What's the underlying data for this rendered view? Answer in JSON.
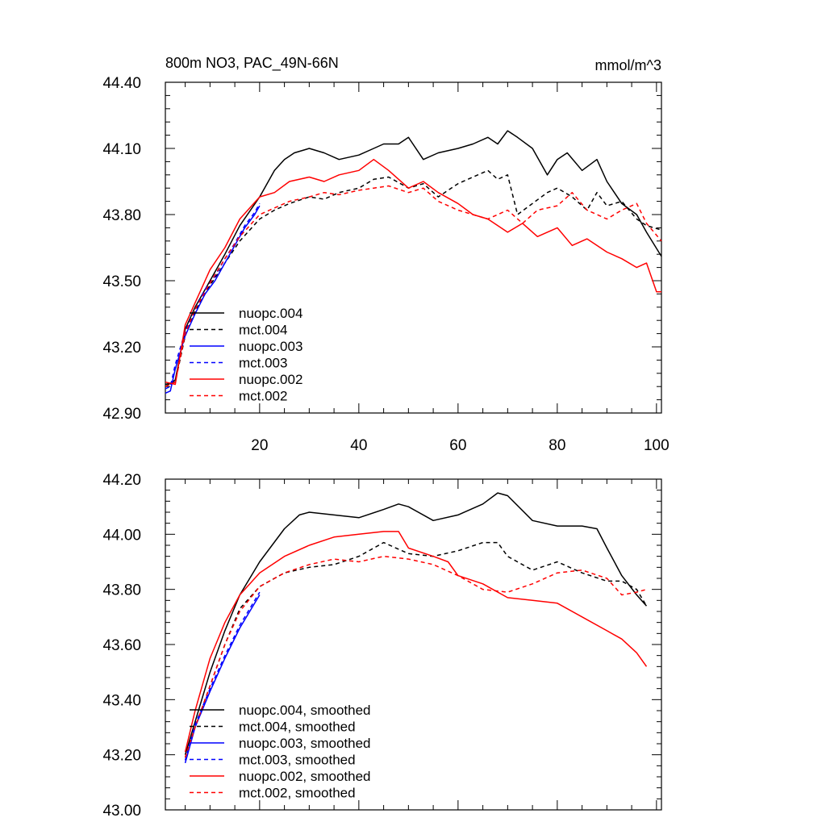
{
  "chart_data": [
    {
      "type": "line",
      "title": "800m NO3, PAC_49N-66N",
      "units": "mmol/m^3",
      "xlim": [
        1,
        101
      ],
      "ylim": [
        42.9,
        44.4
      ],
      "xticks": [
        20,
        40,
        60,
        80,
        100
      ],
      "xtick_labels": [
        "20",
        "40",
        "60",
        "80",
        "100"
      ],
      "yticks": [
        42.9,
        43.2,
        43.5,
        43.8,
        44.1,
        44.4
      ],
      "ytick_labels": [
        "42.90",
        "43.20",
        "43.50",
        "43.80",
        "44.10",
        "44.40"
      ],
      "legend_position": "lower-left",
      "series": [
        {
          "name": "nuopc.004",
          "color": "#000000",
          "dash": "solid",
          "x": [
            1,
            3,
            5,
            7,
            10,
            13,
            16,
            20,
            23,
            25,
            27,
            30,
            33,
            36,
            40,
            43,
            45,
            48,
            50,
            53,
            56,
            60,
            63,
            66,
            68,
            70,
            72,
            75,
            78,
            80,
            82,
            85,
            88,
            90,
            93,
            96,
            98,
            101
          ],
          "y": [
            43.02,
            43.05,
            43.28,
            43.38,
            43.5,
            43.62,
            43.75,
            43.88,
            44.0,
            44.05,
            44.08,
            44.1,
            44.08,
            44.05,
            44.07,
            44.1,
            44.12,
            44.12,
            44.15,
            44.05,
            44.08,
            44.1,
            44.12,
            44.15,
            44.12,
            44.18,
            44.15,
            44.1,
            43.98,
            44.05,
            44.08,
            44.0,
            44.05,
            43.95,
            43.85,
            43.8,
            43.72,
            43.61
          ]
        },
        {
          "name": "mct.004",
          "color": "#000000",
          "dash": "dashed",
          "x": [
            1,
            3,
            5,
            7,
            10,
            13,
            16,
            20,
            23,
            26,
            30,
            33,
            36,
            40,
            43,
            46,
            50,
            53,
            56,
            60,
            63,
            66,
            68,
            70,
            72,
            75,
            78,
            80,
            83,
            86,
            88,
            90,
            93,
            96,
            98,
            101
          ],
          "y": [
            43.03,
            43.04,
            43.25,
            43.36,
            43.48,
            43.58,
            43.68,
            43.78,
            43.82,
            43.85,
            43.88,
            43.87,
            43.9,
            43.92,
            43.96,
            43.97,
            43.92,
            43.94,
            43.88,
            43.94,
            43.97,
            44.0,
            43.96,
            43.98,
            43.8,
            43.85,
            43.9,
            43.92,
            43.88,
            43.82,
            43.9,
            43.84,
            43.86,
            43.78,
            43.75,
            43.73
          ]
        },
        {
          "name": "nuopc.003",
          "color": "#0000ff",
          "dash": "solid",
          "x": [
            1,
            2,
            3,
            5,
            7,
            9,
            11,
            13,
            15,
            17,
            19,
            20
          ],
          "y": [
            42.99,
            43.0,
            43.1,
            43.25,
            43.35,
            43.44,
            43.5,
            43.58,
            43.66,
            43.74,
            43.8,
            43.84
          ]
        },
        {
          "name": "mct.003",
          "color": "#0000ff",
          "dash": "dashed",
          "x": [
            1,
            2,
            3,
            5,
            7,
            9,
            11,
            13,
            15,
            17,
            19,
            20
          ],
          "y": [
            43.01,
            43.02,
            43.12,
            43.27,
            43.37,
            43.46,
            43.52,
            43.6,
            43.67,
            43.75,
            43.81,
            43.85
          ]
        },
        {
          "name": "nuopc.002",
          "color": "#ff0000",
          "dash": "solid",
          "x": [
            1,
            3,
            5,
            7,
            10,
            13,
            16,
            20,
            23,
            26,
            30,
            33,
            36,
            40,
            43,
            46,
            50,
            53,
            56,
            60,
            63,
            66,
            70,
            73,
            76,
            80,
            83,
            86,
            90,
            93,
            96,
            98,
            100,
            101
          ],
          "y": [
            43.04,
            43.03,
            43.3,
            43.4,
            43.55,
            43.65,
            43.78,
            43.88,
            43.9,
            43.95,
            43.97,
            43.95,
            43.98,
            44.0,
            44.05,
            44.0,
            43.92,
            43.95,
            43.9,
            43.85,
            43.8,
            43.78,
            43.72,
            43.76,
            43.7,
            43.74,
            43.66,
            43.69,
            43.63,
            43.6,
            43.56,
            43.58,
            43.45,
            43.45
          ]
        },
        {
          "name": "mct.002",
          "color": "#ff0000",
          "dash": "dashed",
          "x": [
            1,
            3,
            5,
            7,
            10,
            13,
            16,
            20,
            23,
            26,
            30,
            33,
            36,
            40,
            43,
            46,
            50,
            53,
            56,
            60,
            63,
            66,
            70,
            73,
            76,
            80,
            83,
            86,
            90,
            93,
            96,
            98,
            101
          ],
          "y": [
            43.02,
            43.04,
            43.26,
            43.37,
            43.49,
            43.6,
            43.7,
            43.8,
            43.83,
            43.86,
            43.88,
            43.9,
            43.89,
            43.91,
            43.92,
            43.93,
            43.9,
            43.92,
            43.86,
            43.82,
            43.8,
            43.78,
            43.82,
            43.76,
            43.82,
            43.84,
            43.9,
            43.82,
            43.78,
            43.82,
            43.85,
            43.76,
            43.68
          ]
        }
      ]
    },
    {
      "type": "line",
      "xlim": [
        1,
        101
      ],
      "ylim": [
        43.0,
        44.2
      ],
      "xticks": [
        20,
        40,
        60,
        80,
        100
      ],
      "yticks": [
        43.0,
        43.2,
        43.4,
        43.6,
        43.8,
        44.0,
        44.2
      ],
      "ytick_labels": [
        "43.00",
        "43.20",
        "43.40",
        "43.60",
        "43.80",
        "44.00",
        "44.20"
      ],
      "legend_position": "lower-left",
      "series": [
        {
          "name": "nuopc.004, smoothed",
          "color": "#000000",
          "dash": "solid",
          "x": [
            5,
            7,
            10,
            13,
            16,
            20,
            25,
            28,
            30,
            35,
            40,
            45,
            48,
            50,
            55,
            60,
            65,
            68,
            70,
            75,
            80,
            85,
            88,
            90,
            93,
            96,
            98
          ],
          "y": [
            43.2,
            43.32,
            43.5,
            43.65,
            43.78,
            43.9,
            44.02,
            44.07,
            44.08,
            44.07,
            44.06,
            44.09,
            44.11,
            44.1,
            44.05,
            44.07,
            44.11,
            44.15,
            44.14,
            44.05,
            44.03,
            44.03,
            44.02,
            43.95,
            43.85,
            43.78,
            43.74
          ]
        },
        {
          "name": "mct.004, smoothed",
          "color": "#000000",
          "dash": "dashed",
          "x": [
            5,
            7,
            10,
            13,
            16,
            20,
            25,
            30,
            35,
            40,
            45,
            50,
            55,
            60,
            65,
            68,
            70,
            75,
            80,
            85,
            90,
            93,
            96,
            98
          ],
          "y": [
            43.19,
            43.3,
            43.45,
            43.6,
            43.73,
            43.81,
            43.86,
            43.88,
            43.89,
            43.92,
            43.97,
            43.93,
            43.92,
            43.94,
            43.97,
            43.97,
            43.92,
            43.87,
            43.9,
            43.86,
            43.83,
            43.83,
            43.8,
            43.74
          ]
        },
        {
          "name": "nuopc.003, smoothed",
          "color": "#0000ff",
          "dash": "solid",
          "x": [
            5,
            7,
            10,
            13,
            16,
            18,
            20
          ],
          "y": [
            43.17,
            43.3,
            43.43,
            43.55,
            43.66,
            43.72,
            43.78
          ]
        },
        {
          "name": "mct.003, smoothed",
          "color": "#0000ff",
          "dash": "dashed",
          "x": [
            5,
            7,
            10,
            13,
            16,
            18,
            20
          ],
          "y": [
            43.18,
            43.31,
            43.44,
            43.56,
            43.67,
            43.73,
            43.79
          ]
        },
        {
          "name": "nuopc.002, smoothed",
          "color": "#ff0000",
          "dash": "solid",
          "x": [
            5,
            7,
            10,
            13,
            16,
            20,
            25,
            30,
            35,
            40,
            45,
            48,
            50,
            55,
            58,
            60,
            65,
            70,
            75,
            80,
            85,
            90,
            93,
            96,
            98
          ],
          "y": [
            43.21,
            43.36,
            43.55,
            43.68,
            43.78,
            43.86,
            43.92,
            43.96,
            43.99,
            44.0,
            44.01,
            44.01,
            43.95,
            43.92,
            43.9,
            43.85,
            43.82,
            43.77,
            43.76,
            43.75,
            43.7,
            43.65,
            43.62,
            43.57,
            43.52
          ]
        },
        {
          "name": "mct.002, smoothed",
          "color": "#ff0000",
          "dash": "dashed",
          "x": [
            5,
            7,
            10,
            13,
            16,
            20,
            25,
            30,
            35,
            40,
            45,
            50,
            55,
            60,
            65,
            70,
            75,
            80,
            85,
            90,
            93,
            96,
            98
          ],
          "y": [
            43.19,
            43.3,
            43.45,
            43.6,
            43.72,
            43.81,
            43.86,
            43.89,
            43.91,
            43.9,
            43.92,
            43.91,
            43.89,
            43.85,
            43.8,
            43.79,
            43.82,
            43.86,
            43.87,
            43.84,
            43.78,
            43.79,
            43.8
          ]
        }
      ]
    }
  ]
}
